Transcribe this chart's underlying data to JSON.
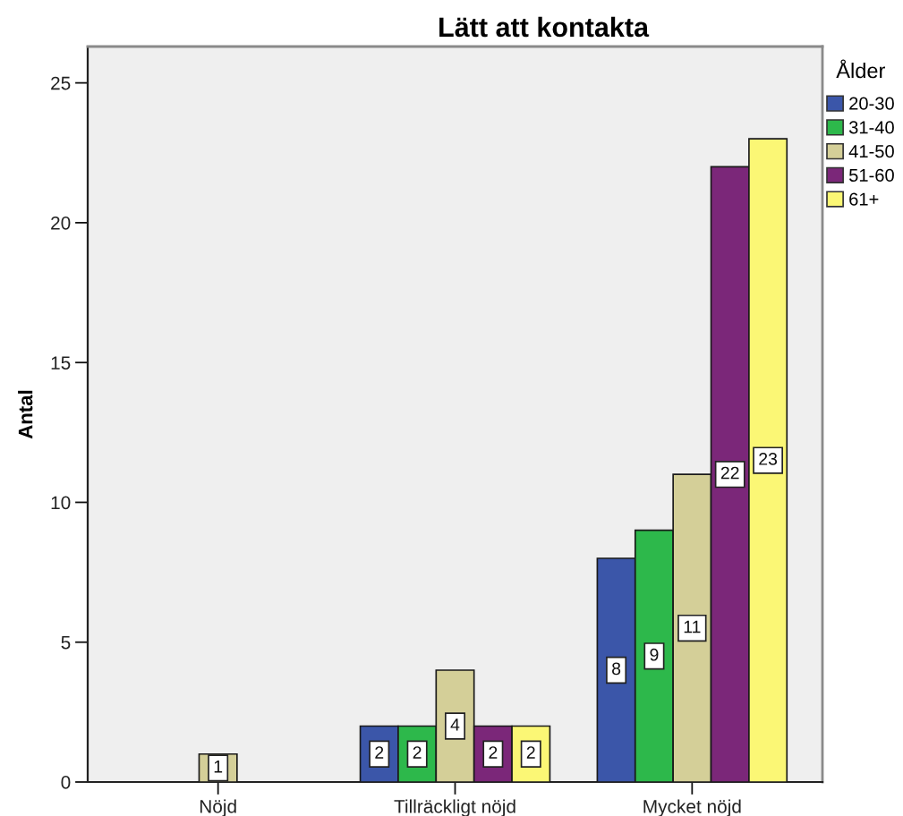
{
  "chart_data": {
    "type": "bar",
    "title": "Lätt att kontakta",
    "ylabel": "Antal",
    "legend_title": "Ålder",
    "categories": [
      "Nöjd",
      "Tillräckligt nöjd",
      "Mycket nöjd"
    ],
    "series": [
      {
        "name": "20-30",
        "color": "#3b56a9",
        "values": [
          null,
          2,
          8
        ]
      },
      {
        "name": "31-40",
        "color": "#2db84b",
        "values": [
          null,
          2,
          9
        ]
      },
      {
        "name": "41-50",
        "color": "#d4cf98",
        "values": [
          1,
          4,
          11
        ]
      },
      {
        "name": "51-60",
        "color": "#7b2779",
        "values": [
          null,
          2,
          22
        ]
      },
      {
        "name": "61+",
        "color": "#fbf775",
        "values": [
          null,
          2,
          23
        ]
      }
    ],
    "ylim": [
      0,
      26.3
    ],
    "yticks": [
      0,
      5,
      10,
      15,
      20,
      25
    ],
    "grid": false,
    "legend": "right",
    "data_labels": true
  }
}
